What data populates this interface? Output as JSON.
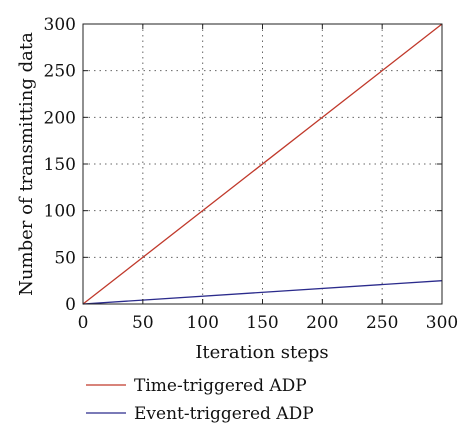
{
  "chart_data": {
    "type": "line",
    "title": "",
    "xlabel": "Iteration steps",
    "ylabel": "Number of transmitting data",
    "xlim": [
      0,
      300
    ],
    "ylim": [
      0,
      300
    ],
    "xticks": [
      0,
      50,
      100,
      150,
      200,
      250,
      300
    ],
    "yticks": [
      0,
      50,
      100,
      150,
      200,
      250,
      300
    ],
    "grid": true,
    "legend_position": "bottom",
    "series": [
      {
        "name": "Time-triggered ADP",
        "color": "#c0392b",
        "x": [
          0,
          300
        ],
        "y": [
          0,
          300
        ]
      },
      {
        "name": "Event-triggered ADP",
        "color": "#2b2b8c",
        "x": [
          0,
          300
        ],
        "y": [
          0,
          25
        ]
      }
    ]
  }
}
